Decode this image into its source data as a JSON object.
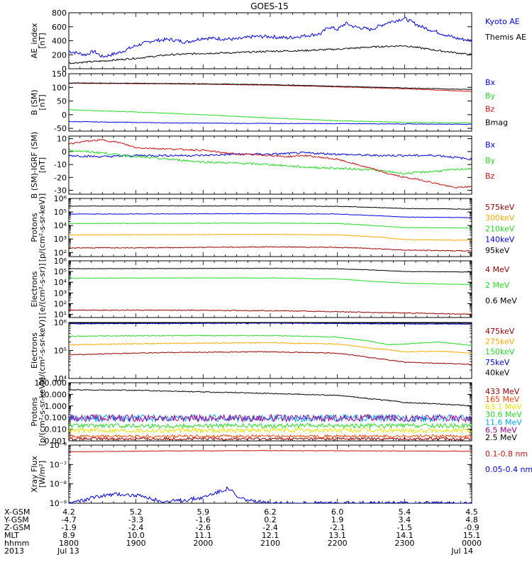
{
  "title": "GOES-15",
  "colors": {
    "black": "#000000",
    "blue": "#0000ee",
    "green": "#22dd22",
    "red": "#cc1111",
    "darkred": "#990000",
    "orange": "#ffaa00",
    "cyan": "#00aaff",
    "yellow": "#e6e600",
    "orangered": "#ff4400",
    "purple": "#990099"
  },
  "chart_data": [
    {
      "type": "line",
      "ylabel": "AE_index\n[nT]",
      "yscale": "linear",
      "ylim": [
        0,
        800
      ],
      "yticks": [
        0,
        200,
        400,
        600,
        800
      ],
      "yticklabels": [
        "0",
        "200",
        "400",
        "600",
        "800"
      ],
      "xlim": [
        0,
        24
      ],
      "series": [
        {
          "name": "Kyoto AE",
          "color": "#0000ee",
          "x": [
            0,
            1,
            1.5,
            2,
            3,
            4,
            5,
            6,
            7,
            8,
            9,
            10,
            11,
            12,
            13,
            14,
            15,
            15.5,
            16,
            16.5,
            17,
            18,
            19,
            20,
            21,
            22,
            23,
            24
          ],
          "y": [
            250,
            200,
            250,
            170,
            230,
            330,
            400,
            420,
            380,
            440,
            430,
            420,
            460,
            460,
            440,
            470,
            500,
            600,
            560,
            650,
            600,
            560,
            660,
            720,
            600,
            520,
            440,
            400
          ],
          "noise": 25
        },
        {
          "name": "Themis AE",
          "color": "#000000",
          "x": [
            0,
            2,
            4,
            6,
            8,
            10,
            12,
            14,
            16,
            18,
            20,
            22,
            24
          ],
          "y": [
            80,
            110,
            150,
            200,
            220,
            230,
            250,
            260,
            280,
            310,
            330,
            260,
            200
          ],
          "noise": 12
        }
      ]
    },
    {
      "type": "line",
      "ylabel": "B (SM)\n[nT]",
      "yscale": "linear",
      "ylim": [
        -60,
        150
      ],
      "yticks": [
        -50,
        0,
        50,
        100,
        150
      ],
      "yticklabels": [
        "-50",
        "0",
        "50",
        "100",
        "150"
      ],
      "xlim": [
        0,
        24
      ],
      "series": [
        {
          "name": "Bx",
          "color": "#0000ee",
          "x": [
            0,
            6,
            12,
            18,
            24
          ],
          "y": [
            -25,
            -30,
            -32,
            -33,
            -35
          ],
          "noise": 1
        },
        {
          "name": "By",
          "color": "#22dd22",
          "x": [
            0,
            4,
            8,
            12,
            16,
            20,
            24
          ],
          "y": [
            18,
            10,
            0,
            -12,
            -22,
            -28,
            -30
          ],
          "noise": 1
        },
        {
          "name": "Bz",
          "color": "#cc1111",
          "x": [
            0,
            4,
            8,
            12,
            16,
            20,
            22,
            24
          ],
          "y": [
            115,
            114,
            112,
            108,
            102,
            95,
            90,
            85
          ],
          "noise": 1
        },
        {
          "name": "Bmag",
          "color": "#000000",
          "x": [
            0,
            4,
            8,
            12,
            16,
            20,
            24
          ],
          "y": [
            116,
            115,
            113,
            110,
            104,
            98,
            92
          ],
          "noise": 1
        }
      ]
    },
    {
      "type": "line",
      "ylabel": "B (SM)-IGRF (SM)\n[nT]",
      "yscale": "linear",
      "ylim": [
        -33,
        12
      ],
      "yticks": [
        -30,
        -20,
        -10,
        0,
        10
      ],
      "yticklabels": [
        "-30",
        "-20",
        "-10",
        "0",
        "10"
      ],
      "xlim": [
        0,
        24
      ],
      "series": [
        {
          "name": "Bx",
          "color": "#0000ee",
          "x": [
            0,
            2,
            4,
            6,
            8,
            10,
            12,
            14,
            16,
            18,
            20,
            22,
            24
          ],
          "y": [
            -3,
            -4,
            -3,
            -3,
            -3,
            -2,
            -2,
            -1,
            -2,
            -3,
            -3,
            -3,
            -6
          ],
          "noise": 0.8
        },
        {
          "name": "By",
          "color": "#22dd22",
          "x": [
            0,
            2,
            4,
            6,
            8,
            10,
            12,
            14,
            16,
            18,
            20,
            22,
            24
          ],
          "y": [
            1,
            -1,
            -4,
            -6,
            -8,
            -9,
            -10,
            -12,
            -13,
            -14,
            -17,
            -15,
            -13
          ],
          "noise": 0.8
        },
        {
          "name": "Bz",
          "color": "#cc1111",
          "x": [
            0,
            1,
            2,
            3,
            4,
            6,
            8,
            10,
            12,
            13,
            14,
            16,
            18,
            19,
            20,
            21,
            22,
            23,
            24
          ],
          "y": [
            6,
            8,
            9,
            7,
            3,
            2,
            1,
            -2,
            -3,
            -4,
            -3,
            -6,
            -13,
            -17,
            -20,
            -22,
            -25,
            -28,
            -27
          ],
          "noise": 0.6
        }
      ]
    },
    {
      "type": "line",
      "ylabel": "Protons\n[p/(cm²-s-sr-keV)]",
      "yscale": "log",
      "ylim": [
        50,
        1000000
      ],
      "yticks": [
        100,
        1000,
        10000,
        100000,
        1000000
      ],
      "yticklabels": [
        "10²",
        "10³",
        "10⁴",
        "10⁵",
        "10⁶"
      ],
      "xlim": [
        0,
        24
      ],
      "series": [
        {
          "name": "575keV",
          "color": "#990000",
          "x": [
            0,
            6,
            12,
            16,
            18,
            20,
            24
          ],
          "y": [
            220,
            230,
            260,
            240,
            200,
            150,
            130
          ],
          "noise": 0.03,
          "log": true
        },
        {
          "name": "300keV",
          "color": "#ffaa00",
          "x": [
            0,
            6,
            12,
            16,
            18,
            20,
            24
          ],
          "y": [
            2000,
            2100,
            2200,
            2000,
            1500,
            900,
            800
          ],
          "noise": 0.02,
          "log": true
        },
        {
          "name": "210keV",
          "color": "#22dd22",
          "x": [
            0,
            6,
            12,
            16,
            18,
            20,
            24
          ],
          "y": [
            14000,
            14500,
            15000,
            14000,
            10000,
            7000,
            6500
          ],
          "noise": 0.02,
          "log": true
        },
        {
          "name": "140keV",
          "color": "#0000ee",
          "x": [
            0,
            6,
            12,
            16,
            18,
            20,
            24
          ],
          "y": [
            70000,
            72000,
            75000,
            70000,
            55000,
            42000,
            38000
          ],
          "noise": 0.02,
          "log": true
        },
        {
          "name": "95keV",
          "color": "#000000",
          "x": [
            0,
            6,
            12,
            16,
            18,
            20,
            24
          ],
          "y": [
            270000,
            280000,
            280000,
            260000,
            220000,
            180000,
            160000
          ],
          "noise": 0.02,
          "log": true
        }
      ]
    },
    {
      "type": "line",
      "ylabel": "Electrons\n[e/(cm²-s-sr)]",
      "yscale": "log",
      "ylim": [
        5,
        1000000
      ],
      "yticks": [
        10,
        100,
        1000,
        10000,
        100000,
        1000000
      ],
      "yticklabels": [
        "10¹",
        "10²",
        "10³",
        "10⁴",
        "10⁵",
        "10⁶"
      ],
      "xlim": [
        0,
        24
      ],
      "series": [
        {
          "name": "4 MeV",
          "color": "#990000",
          "x": [
            0,
            6,
            12,
            18,
            24
          ],
          "y": [
            25,
            24,
            22,
            15,
            10
          ],
          "noise": 0.04,
          "log": true
        },
        {
          "name": "2 MeV",
          "color": "#22dd22",
          "x": [
            0,
            6,
            12,
            16,
            18,
            20,
            24
          ],
          "y": [
            24000,
            25000,
            25000,
            20000,
            12000,
            8000,
            6000
          ],
          "noise": 0.02,
          "log": true
        },
        {
          "name": "0.6 MeV",
          "color": "#000000",
          "x": [
            0,
            6,
            12,
            16,
            18,
            20,
            24
          ],
          "y": [
            180000,
            190000,
            200000,
            180000,
            140000,
            100000,
            90000
          ],
          "noise": 0.02,
          "log": true
        }
      ]
    },
    {
      "type": "line",
      "ylabel": "Electrons\n[e/(cm²-s-sr-keV)]",
      "yscale": "log",
      "ylim": [
        10000,
        1000000
      ],
      "yticks": [
        10000,
        100000,
        1000000
      ],
      "yticklabels": [
        "10⁴",
        "10⁵",
        "10⁶"
      ],
      "xlim": [
        0,
        24
      ],
      "series": [
        {
          "name": "475keV",
          "color": "#990000",
          "x": [
            0,
            6,
            12,
            16,
            18,
            20,
            24
          ],
          "y": [
            70000,
            85000,
            90000,
            80000,
            55000,
            38000,
            32000
          ],
          "noise": 0.015,
          "log": true
        },
        {
          "name": "275keV",
          "color": "#ffaa00",
          "x": [
            0,
            6,
            12,
            16,
            18,
            20,
            22,
            24
          ],
          "y": [
            160000,
            180000,
            190000,
            170000,
            120000,
            90000,
            95000,
            80000
          ],
          "noise": 0.015,
          "log": true
        },
        {
          "name": "150keV",
          "color": "#22dd22",
          "x": [
            0,
            6,
            12,
            16,
            18,
            19,
            20,
            22,
            24
          ],
          "y": [
            320000,
            340000,
            340000,
            300000,
            210000,
            160000,
            170000,
            200000,
            150000
          ],
          "noise": 0.015,
          "log": true
        },
        {
          "name": "75keV",
          "color": "#0000ee",
          "x": [
            0,
            6,
            12,
            18,
            24
          ],
          "y": [
            900000,
            920000,
            950000,
            900000,
            880000
          ],
          "noise": 0.01,
          "log": true
        },
        {
          "name": "40keV",
          "color": "#000000",
          "x": [
            0,
            6,
            12,
            18,
            24
          ],
          "y": [
            950000,
            970000,
            990000,
            960000,
            940000
          ],
          "noise": 0.01,
          "log": true
        }
      ]
    },
    {
      "type": "line",
      "ylabel": "Protons\n[p/(cm²-s-sr-keV)]",
      "yscale": "log",
      "ylim": [
        0.001,
        100
      ],
      "yticks": [
        0.001,
        0.01,
        0.1,
        1,
        10,
        100
      ],
      "yticklabels": [
        "0.001",
        "0.010",
        "0.100",
        "1.000",
        "10.000",
        "100.000"
      ],
      "xlim": [
        0,
        24
      ],
      "series": [
        {
          "name": "433 MeV",
          "color": "#990000",
          "x": [
            0,
            24
          ],
          "y": [
            0.0015,
            0.0015
          ],
          "noise": 0.12,
          "log": true
        },
        {
          "name": "165 MeV",
          "color": "#ff4400",
          "x": [
            0,
            24
          ],
          "y": [
            0.0025,
            0.0025
          ],
          "noise": 0.12,
          "log": true
        },
        {
          "name": "63.1 MeV",
          "color": "#e6e600",
          "x": [
            0,
            24
          ],
          "y": [
            0.008,
            0.008
          ],
          "noise": 0.2,
          "log": true
        },
        {
          "name": "30.6 MeV",
          "color": "#22dd22",
          "x": [
            0,
            24
          ],
          "y": [
            0.02,
            0.02
          ],
          "noise": 0.18,
          "log": true
        },
        {
          "name": "11.6 MeV",
          "color": "#00aaff",
          "x": [
            0,
            24
          ],
          "y": [
            0.09,
            0.09
          ],
          "noise": 0.3,
          "log": true
        },
        {
          "name": "6.5 MeV",
          "color": "#990099",
          "x": [
            0,
            24
          ],
          "y": [
            0.09,
            0.09
          ],
          "noise": 0.3,
          "log": true
        },
        {
          "name": "2.5 MeV",
          "color": "#000000",
          "x": [
            0,
            4,
            8,
            12,
            16,
            18,
            20,
            22,
            24
          ],
          "y": [
            25,
            22,
            16,
            12,
            8,
            4,
            2,
            1.5,
            1
          ],
          "noise": 0.04,
          "log": true
        }
      ]
    },
    {
      "type": "line",
      "ylabel": "Xray Flux\n[W/m²]",
      "yscale": "log",
      "ylim": [
        1e-09,
        1e-06
      ],
      "yticks": [
        1e-09,
        1e-08,
        1e-07,
        1e-06
      ],
      "yticklabels": [
        "10⁻⁹",
        "10⁻⁸",
        "10⁻⁷",
        "10⁻⁶"
      ],
      "xlim": [
        0,
        24
      ],
      "series": [
        {
          "name": "0.1-0.8 nm",
          "color": "#cc1111",
          "x": [
            0,
            6,
            12,
            18,
            24
          ],
          "y": [
            4.5e-07,
            5e-07,
            5.2e-07,
            5e-07,
            4.8e-07
          ],
          "noise": 0.015,
          "log": true
        },
        {
          "name": "0.05-0.4 nm",
          "color": "#0000ee",
          "x": [
            0,
            1,
            2,
            3,
            4,
            5,
            6,
            7,
            8,
            9,
            9.5,
            10,
            11,
            12,
            14,
            16,
            18,
            20,
            22,
            24
          ],
          "y": [
            1e-09,
            1.5e-09,
            2.5e-09,
            3e-09,
            2.5e-09,
            1.5e-09,
            1.2e-09,
            1.5e-09,
            2e-09,
            4e-09,
            6e-09,
            2e-09,
            1.2e-09,
            1e-09,
            1e-09,
            1e-09,
            1e-09,
            1e-09,
            1e-09,
            1e-09
          ],
          "noise": 0.1,
          "log": true
        }
      ]
    }
  ],
  "time_axis": {
    "row_labels": [
      "X-GSM",
      "Y-GSM",
      "Z-GSM",
      "MLT",
      "hhmm",
      "2013"
    ],
    "columns": [
      [
        "4.2",
        "-4.7",
        "-1.9",
        "8.9",
        "1800",
        "Jul 13"
      ],
      [
        "5.2",
        "-3.3",
        "-2.4",
        "10.0",
        "1900",
        ""
      ],
      [
        "5.9",
        "-1.6",
        "-2.6",
        "11.1",
        "2000",
        ""
      ],
      [
        "6.2",
        "0.2",
        "-2.4",
        "12.1",
        "2100",
        ""
      ],
      [
        "6.0",
        "1.9",
        "-2.1",
        "13.1",
        "2200",
        ""
      ],
      [
        "5.4",
        "3.4",
        "-1.5",
        "14.1",
        "2300",
        ""
      ],
      [
        "4.5",
        "4.8",
        "-0.9",
        "15.1",
        "0000",
        "Jul 14"
      ]
    ]
  }
}
